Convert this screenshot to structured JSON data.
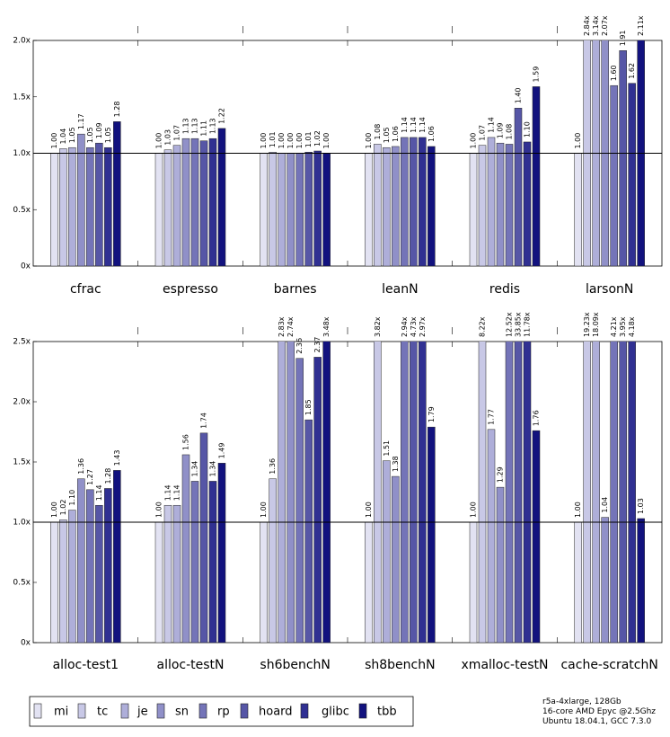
{
  "chart_data": [
    {
      "type": "bar",
      "categories": [
        "cfrac",
        "espresso",
        "barnes",
        "leanN",
        "redis",
        "larsonN"
      ],
      "ylim": [
        0,
        2.0
      ],
      "yticks": [
        {
          "value": 0,
          "label": "0x"
        },
        {
          "value": 0.5,
          "label": "0.5x"
        },
        {
          "value": 1.0,
          "label": "1.0x"
        },
        {
          "value": 1.5,
          "label": "1.5x"
        },
        {
          "value": 2.0,
          "label": "2.0x"
        }
      ],
      "reference_line": 1,
      "series": [
        {
          "name": "mi",
          "color": "#e2e2f2",
          "values": [
            1.0,
            1.0,
            1.0,
            1.0,
            1.0,
            1.0
          ],
          "value_labels": [
            "1.00",
            "1.00",
            "1.00",
            "1.00",
            "1.00",
            "1.00"
          ]
        },
        {
          "name": "tc",
          "color": "#c8c8e6",
          "values": [
            1.04,
            1.03,
            1.01,
            1.08,
            1.07,
            2.84
          ],
          "value_labels": [
            "1.04",
            "1.03",
            "1.01",
            "1.08",
            "1.07",
            "2.84x"
          ]
        },
        {
          "name": "je",
          "color": "#aeaed9",
          "values": [
            1.05,
            1.07,
            1.0,
            1.05,
            1.14,
            3.14
          ],
          "value_labels": [
            "1.05",
            "1.07",
            "1.00",
            "1.05",
            "1.14",
            "3.14x"
          ]
        },
        {
          "name": "sn",
          "color": "#9090c8",
          "values": [
            1.17,
            1.13,
            1.0,
            1.06,
            1.09,
            2.07
          ],
          "value_labels": [
            "1.17",
            "1.13",
            "1.00",
            "1.06",
            "1.09",
            "2.07x"
          ]
        },
        {
          "name": "rp",
          "color": "#7474b8",
          "values": [
            1.05,
            1.13,
            1.0,
            1.14,
            1.08,
            1.6
          ],
          "value_labels": [
            "1.05",
            "1.13",
            "1.00",
            "1.14",
            "1.08",
            "1.60"
          ]
        },
        {
          "name": "hoard",
          "color": "#5656a6",
          "values": [
            1.09,
            1.11,
            1.01,
            1.14,
            1.4,
            1.91
          ],
          "value_labels": [
            "1.09",
            "1.11",
            "1.01",
            "1.14",
            "1.40",
            "1.91"
          ]
        },
        {
          "name": "glibc",
          "color": "#303092",
          "values": [
            1.05,
            1.13,
            1.02,
            1.14,
            1.1,
            1.62
          ],
          "value_labels": [
            "1.05",
            "1.13",
            "1.02",
            "1.14",
            "1.10",
            "1.62"
          ]
        },
        {
          "name": "tbb",
          "color": "#12127e",
          "values": [
            1.28,
            1.22,
            1.0,
            1.06,
            1.59,
            2.11
          ],
          "value_labels": [
            "1.28",
            "1.22",
            "1.00",
            "1.06",
            "1.59",
            "2.11x"
          ]
        }
      ]
    },
    {
      "type": "bar",
      "categories": [
        "alloc-test1",
        "alloc-testN",
        "sh6benchN",
        "sh8benchN",
        "xmalloc-testN",
        "cache-scratchN"
      ],
      "ylim": [
        0,
        2.5
      ],
      "yticks": [
        {
          "value": 0,
          "label": "0x"
        },
        {
          "value": 0.5,
          "label": "0.5x"
        },
        {
          "value": 1.0,
          "label": "1.0x"
        },
        {
          "value": 1.5,
          "label": "1.5x"
        },
        {
          "value": 2.0,
          "label": "2.0x"
        },
        {
          "value": 2.5,
          "label": "2.5x"
        }
      ],
      "reference_line": 1,
      "series": [
        {
          "color": "#e2e2f2",
          "values": [
            1.0,
            1.0,
            1.0,
            1.0,
            1.0,
            1.0
          ],
          "value_labels": [
            "1.00",
            "1.00",
            "1.00",
            "1.00",
            "1.00",
            "1.00"
          ]
        },
        {
          "color": "#c8c8e6",
          "values": [
            1.02,
            1.14,
            1.36,
            3.82,
            8.22,
            19.23
          ],
          "value_labels": [
            "1.02",
            "1.14",
            "1.36",
            "3.82x",
            "8.22x",
            "19.23x"
          ]
        },
        {
          "color": "#aeaed9",
          "values": [
            1.1,
            1.14,
            2.83,
            1.51,
            1.77,
            18.09
          ],
          "value_labels": [
            "1.10",
            "1.14",
            "2.83x",
            "1.51",
            "1.77",
            "18.09x"
          ]
        },
        {
          "color": "#9090c8",
          "values": [
            1.36,
            1.56,
            2.74,
            1.38,
            1.29,
            1.04
          ],
          "value_labels": [
            "1.36",
            "1.56",
            "2.74x",
            "1.38",
            "1.29",
            "1.04"
          ]
        },
        {
          "color": "#7474b8",
          "values": [
            1.27,
            1.34,
            2.36,
            2.94,
            12.52,
            4.21
          ],
          "value_labels": [
            "1.27",
            "1.34",
            "2.36",
            "2.94x",
            "12.52x",
            "4.21x"
          ]
        },
        {
          "color": "#5656a6",
          "values": [
            1.14,
            1.74,
            1.85,
            4.73,
            33.85,
            3.95
          ],
          "value_labels": [
            "1.14",
            "1.74",
            "1.85",
            "4.73x",
            "33.85x",
            "3.95x"
          ]
        },
        {
          "color": "#303092",
          "values": [
            1.28,
            1.34,
            2.37,
            2.97,
            11.78,
            4.18
          ],
          "value_labels": [
            "1.28",
            "1.34",
            "2.37",
            "2.97x",
            "11.78x",
            "4.18x"
          ]
        },
        {
          "color": "#12127e",
          "values": [
            1.43,
            1.49,
            3.48,
            1.79,
            1.76,
            1.03
          ],
          "value_labels": [
            "1.43",
            "1.49",
            "3.48x",
            "1.79",
            "1.76",
            "1.03"
          ]
        }
      ]
    }
  ],
  "footer": [
    "r5a-4xlarge, 128Gb",
    "16-core AMD Epyc @2.5Ghz",
    "Ubuntu 18.04.1, GCC 7.3.0"
  ]
}
